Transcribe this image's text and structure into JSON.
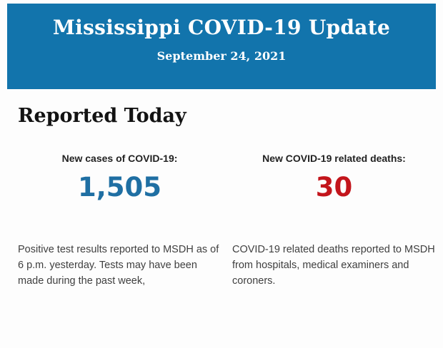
{
  "header": {
    "title": "Mississippi COVID-19 Update",
    "date": "September 24, 2021",
    "bg_color": "#1274ac",
    "text_color": "#ffffff"
  },
  "main": {
    "heading": "Reported Today",
    "stats": [
      {
        "label": "New cases of COVID-19:",
        "value": "1,505",
        "value_color": "#1f6fa3",
        "description": "Positive test results reported to MSDH as of 6 p.m. yesterday. Tests may have been made during the past week,"
      },
      {
        "label": "New COVID-19 related deaths:",
        "value": "30",
        "value_color": "#c3151c",
        "description": "COVID-19 related deaths reported to MSDH from hospitals, medical examiners and coroners."
      }
    ]
  }
}
